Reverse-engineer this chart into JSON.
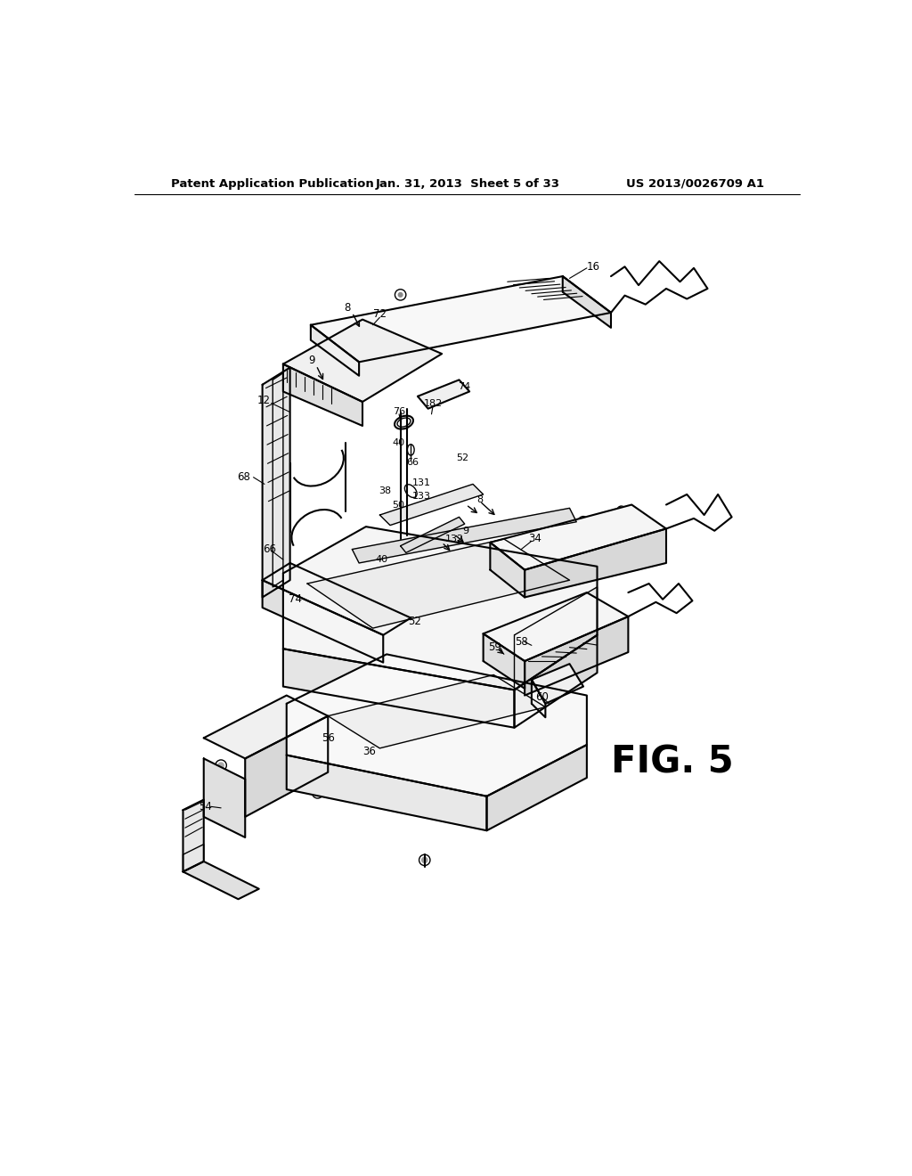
{
  "bg_color": "#ffffff",
  "header_left": "Patent Application Publication",
  "header_center": "Jan. 31, 2013  Sheet 5 of 33",
  "header_right": "US 2013/0026709 A1",
  "fig_label": "FIG. 5"
}
